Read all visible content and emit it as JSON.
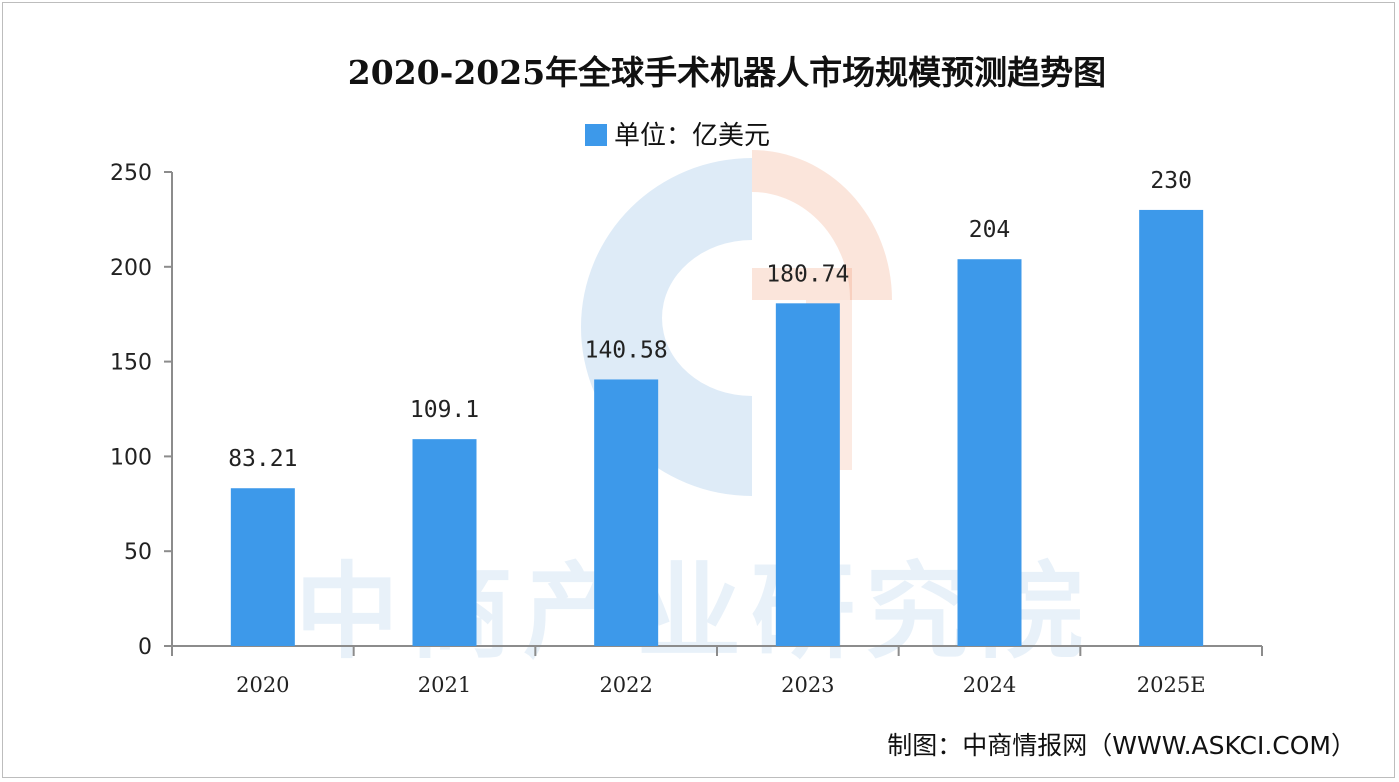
{
  "chart_data": {
    "type": "bar",
    "title": "2020-2025年全球手术机器人市场规模预测趋势图",
    "legend": {
      "label": "单位：亿美元",
      "position": "top-center"
    },
    "categories": [
      "2020",
      "2021",
      "2022",
      "2023",
      "2024",
      "2025E"
    ],
    "series": [
      {
        "name": "单位：亿美元",
        "values": [
          83.21,
          109.1,
          140.58,
          180.74,
          204,
          230
        ],
        "labels": [
          "83.21",
          "109.1",
          "140.58",
          "180.74",
          "204",
          "230"
        ]
      }
    ],
    "yticks": [
      "0",
      "50",
      "100",
      "150",
      "200",
      "250"
    ],
    "ylim": [
      0,
      250
    ],
    "xlabel": "",
    "ylabel": "",
    "grid": false,
    "colors": {
      "bar": "#3d99ea",
      "axis": "#8c8c8c"
    }
  },
  "watermark": {
    "text": "中商产业研究院"
  },
  "source": "制图：中商情报网（WWW.ASKCI.COM）"
}
